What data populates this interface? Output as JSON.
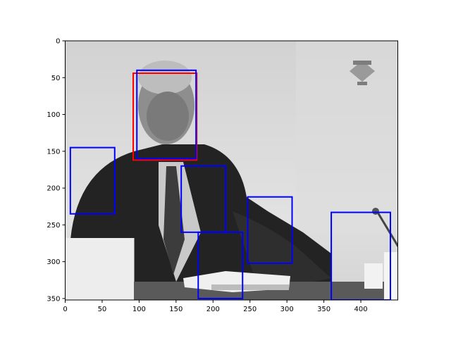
{
  "chart_data": {
    "type": "image-with-boxes",
    "title": "",
    "xlabel": "",
    "ylabel": "",
    "xlim": [
      0,
      450
    ],
    "ylim": [
      352,
      0
    ],
    "x_ticks": [
      0,
      50,
      100,
      150,
      200,
      250,
      300,
      350,
      400
    ],
    "y_ticks": [
      0,
      50,
      100,
      150,
      200,
      250,
      300,
      350
    ],
    "grid": false,
    "image": {
      "description_hidden": true,
      "extent": [
        0,
        450,
        352,
        0
      ]
    },
    "boxes": [
      {
        "x0": 92,
        "y0": 44,
        "x1": 178,
        "y1": 162,
        "color": "#ff0000"
      },
      {
        "x0": 97,
        "y0": 40,
        "x1": 177,
        "y1": 160,
        "color": "#0000ff"
      },
      {
        "x0": 7,
        "y0": 145,
        "x1": 67,
        "y1": 235,
        "color": "#0000ff"
      },
      {
        "x0": 157,
        "y0": 170,
        "x1": 217,
        "y1": 260,
        "color": "#0000ff"
      },
      {
        "x0": 180,
        "y0": 260,
        "x1": 240,
        "y1": 350,
        "color": "#0000ff"
      },
      {
        "x0": 247,
        "y0": 212,
        "x1": 307,
        "y1": 302,
        "color": "#0000ff"
      },
      {
        "x0": 360,
        "y0": 233,
        "x1": 440,
        "y1": 352,
        "color": "#0000ff"
      }
    ]
  }
}
